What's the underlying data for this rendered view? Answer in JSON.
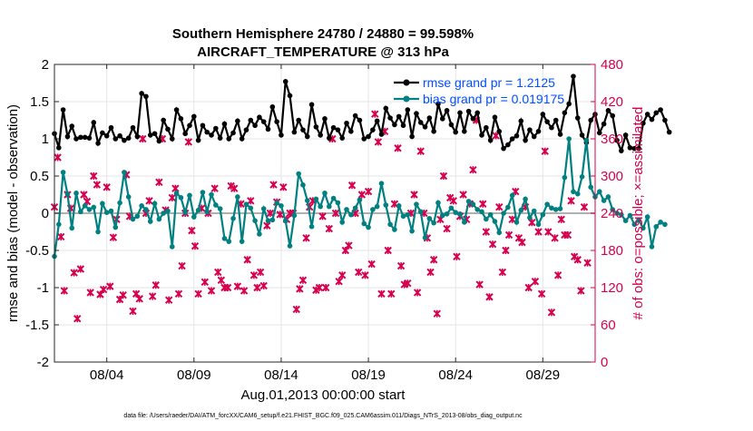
{
  "chart_data": {
    "type": "line",
    "title": "Southern Hemisphere 24780 / 24880 = 99.598%",
    "subtitle": "AIRCRAFT_TEMPERATURE @ 313 hPa",
    "xlabel": "Aug.01,2013 00:00:00 start",
    "ylabel": "rmse and bias (model - observation)",
    "ylabel_right": "# of obs: o=possible; ×=assimilated",
    "footer": "data file: /Users/raeder/DAI/ATM_forcXX/CAM6_setup/f.e21.FHIST_BGC.f09_025.CAM6assim.011/Diags_NTrS_2013-08/obs_diag_output.nc",
    "xlim": [
      1,
      32
    ],
    "ylim": [
      -2,
      2
    ],
    "ylim_right": [
      0,
      480
    ],
    "x_ticks": [
      4,
      9,
      14,
      19,
      24,
      29
    ],
    "x_tick_labels": [
      "08/04",
      "08/09",
      "08/14",
      "08/19",
      "08/24",
      "08/29"
    ],
    "y_ticks": [
      -2,
      -1.5,
      -1,
      -0.5,
      0,
      0.5,
      1,
      1.5,
      2
    ],
    "y_tick_labels": [
      "-2",
      "-1.5",
      "-1",
      "-0.5",
      "0",
      "0.5",
      "1",
      "1.5",
      "2"
    ],
    "y_ticks_right": [
      0,
      60,
      120,
      180,
      240,
      300,
      360,
      420,
      480
    ],
    "y_tick_labels_right": [
      "0",
      "60",
      "120",
      "180",
      "240",
      "300",
      "360",
      "420",
      "480"
    ],
    "legend_location": "top-right",
    "colors": {
      "rmse": "#000000",
      "bias": "#008080",
      "obs": "#d6004e",
      "legend_text": "#0050ff",
      "zero_line": "#b0b0b0"
    },
    "x_start": 1.0,
    "x_step": 0.25,
    "series": [
      {
        "name": "rmse grand pr = 1.2125",
        "axis": "left",
        "values": [
          1.07,
          0.88,
          1.39,
          1.03,
          1.17,
          1.0,
          1.02,
          1.02,
          1.01,
          1.22,
          0.94,
          1.08,
          1.04,
          1.15,
          1.0,
          1.04,
          0.98,
          1.01,
          1.15,
          1.03,
          1.61,
          1.57,
          1.05,
          1.07,
          0.97,
          1.25,
          1.13,
          1.0,
          1.39,
          1.27,
          1.07,
          1.18,
          1.3,
          0.98,
          1.18,
          1.09,
          1.05,
          1.14,
          1.01,
          1.2,
          1.0,
          1.08,
          1.24,
          1.0,
          1.12,
          1.25,
          1.18,
          1.29,
          1.23,
          1.13,
          1.43,
          1.23,
          1.05,
          1.77,
          1.58,
          1.09,
          1.25,
          1.12,
          1.03,
          1.46,
          1.16,
          1.05,
          1.27,
          1.01,
          1.15,
          1.12,
          1.01,
          1.21,
          1.1,
          1.31,
          1.25,
          1.0,
          1.03,
          1.12,
          1.24,
          1.06,
          1.41,
          1.28,
          1.19,
          1.3,
          1.18,
          1.39,
          1.03,
          1.34,
          1.22,
          1.16,
          1.28,
          1.1,
          1.47,
          1.27,
          1.38,
          1.19,
          1.09,
          1.35,
          1.1,
          1.37,
          1.27,
          1.35,
          1.05,
          1.15,
          0.98,
          1.29,
          1.1,
          0.87,
          0.92,
          1.0,
          1.04,
          1.24,
          0.98,
          1.12,
          1.03,
          1.1,
          1.33,
          1.23,
          1.15,
          1.25,
          1.06,
          1.35,
          1.47,
          1.84,
          1.28,
          1.05,
          0.95,
          1.25,
          1.33,
          1.08,
          1.2,
          1.38,
          1.31,
          0.98,
          0.84,
          1.05,
          0.88,
          0.87,
          0.87,
          1.21,
          1.33,
          1.26,
          1.35,
          1.39,
          1.25,
          1.09
        ]
      },
      {
        "name": "bias grand pr = 0.019175",
        "axis": "left",
        "values": [
          -0.58,
          -0.15,
          0.55,
          0.26,
          -0.2,
          0.27,
          0.02,
          0.1,
          0.05,
          0.08,
          -0.25,
          0.13,
          0.01,
          0.03,
          -0.19,
          0.14,
          0.55,
          0.22,
          -0.08,
          -0.04,
          0.1,
          0.05,
          -0.11,
          0.13,
          -0.08,
          0.0,
          0.03,
          -0.45,
          0.27,
          0.21,
          0.01,
          0.24,
          -0.05,
          0.04,
          0.28,
          0.02,
          0.25,
          0.11,
          0.06,
          -0.34,
          -0.38,
          -0.07,
          0.22,
          -0.38,
          0.12,
          0.07,
          -0.1,
          -0.28,
          0.06,
          -0.1,
          -0.09,
          0.14,
          0.1,
          -0.1,
          -0.44,
          -0.03,
          0.53,
          0.38,
          0.17,
          -0.18,
          0.19,
          0.09,
          0.27,
          0.09,
          0.2,
          0.14,
          -0.12,
          0.05,
          -0.02,
          0.07,
          0.18,
          -0.14,
          -0.19,
          0.05,
          0.09,
          0.4,
          0.11,
          -0.15,
          -0.22,
          0.1,
          -0.04,
          -0.02,
          -0.24,
          0.12,
          0.02,
          -0.33,
          -0.07,
          -0.13,
          0.14,
          -0.03,
          -0.01,
          0.07,
          0.01,
          -0.01,
          -0.12,
          0.16,
          0.12,
          0.05,
          0.02,
          -0.08,
          -0.02,
          -0.11,
          -0.26,
          0.0,
          0.08,
          0.24,
          -0.12,
          0.04,
          0.19,
          -0.06,
          0.03,
          -0.15,
          -0.02,
          0.12,
          0.07,
          0.05,
          0.06,
          0.48,
          1.0,
          0.29,
          0.26,
          0.49,
          0.98,
          0.35,
          0.22,
          0.29,
          0.17,
          0.22,
          0.05,
          0.0,
          -0.02,
          -0.1,
          -0.03,
          -0.15,
          -0.09,
          -0.2,
          -0.05,
          -0.45,
          -0.18,
          -0.12,
          -0.15
        ]
      },
      {
        "name": "assimilated obs count",
        "axis": "right",
        "values": [
          250,
          330,
          202,
          115,
          270,
          248,
          144,
          70,
          150,
          270,
          259,
          112,
          300,
          286,
          109,
          117,
          282,
          122,
          201,
          230,
          101,
          108,
          302,
          235,
          82,
          110,
          102,
          360,
          240,
          260,
          106,
          124,
          290,
          360,
          245,
          100,
          265,
          280,
          110,
          155,
          240,
          355,
          212,
          187,
          110,
          248,
          129,
          240,
          115,
          280,
          145,
          132,
          120,
          120,
          284,
          280,
          122,
          255,
          115,
          165,
          260,
          140,
          120,
          145,
          123,
          220,
          240,
          286,
          258,
          238,
          282,
          230,
          240,
          240,
          85,
          118,
          132,
          200,
          250,
          260,
          116,
          120,
          235,
          120,
          215,
          360,
          240,
          130,
          140,
          180,
          188,
          285,
          240,
          145,
          270,
          140,
          275,
          158,
          400,
          355,
          110,
          372,
          180,
          110,
          255,
          345,
          155,
          125,
          127,
          240,
          270,
          112,
          340,
          240,
          200,
          145,
          165,
          78,
          230,
          300,
          215,
          265,
          260,
          170,
          235,
          270,
          230,
          255,
          310,
          390,
          125,
          255,
          210,
          105,
          190,
          365,
          250,
          145,
          180,
          205,
          230,
          275,
          200,
          193,
          250,
          120,
          225,
          130,
          210,
          110,
          340,
          210,
          80,
          200,
          140,
          230,
          205,
          205,
          260,
          170,
          165,
          115,
          250,
          160
        ]
      }
    ],
    "obs_x_start": 1.0,
    "obs_x_step": 0.1875
  }
}
